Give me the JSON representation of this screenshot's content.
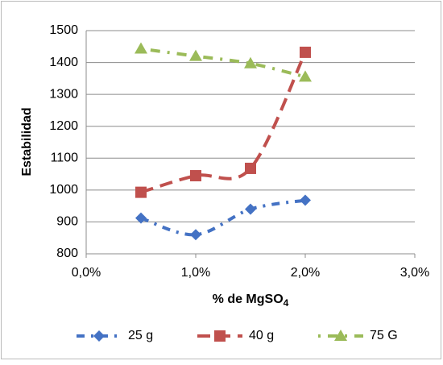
{
  "chart_data": {
    "type": "line",
    "y_label": "Estabilidad",
    "x_label": "% de MgSO",
    "x_label_subscript": "4",
    "x": [
      0.5,
      1.0,
      1.5,
      2.0
    ],
    "series": [
      {
        "name": "25 g",
        "color": "#4472c4",
        "marker": "diamond",
        "values": [
          912,
          860,
          940,
          968
        ]
      },
      {
        "name": "40 g",
        "color": "#c0504d",
        "marker": "square",
        "values": [
          993,
          1045,
          1068,
          1432
        ]
      },
      {
        "name": "75 G",
        "color": "#9bbb59",
        "marker": "triangle",
        "values": [
          1443,
          1420,
          1397,
          1355
        ]
      }
    ],
    "xlim": [
      0,
      3
    ],
    "xticks": [
      {
        "value": 0,
        "label": "0,0%"
      },
      {
        "value": 1,
        "label": "1,0%"
      },
      {
        "value": 2,
        "label": "2,0%"
      },
      {
        "value": 3,
        "label": "3,0%"
      }
    ],
    "ylim": [
      800,
      1500
    ],
    "yticks": [
      800,
      900,
      1000,
      1100,
      1200,
      1300,
      1400,
      1500
    ],
    "grid": true,
    "legend": "bottom"
  }
}
